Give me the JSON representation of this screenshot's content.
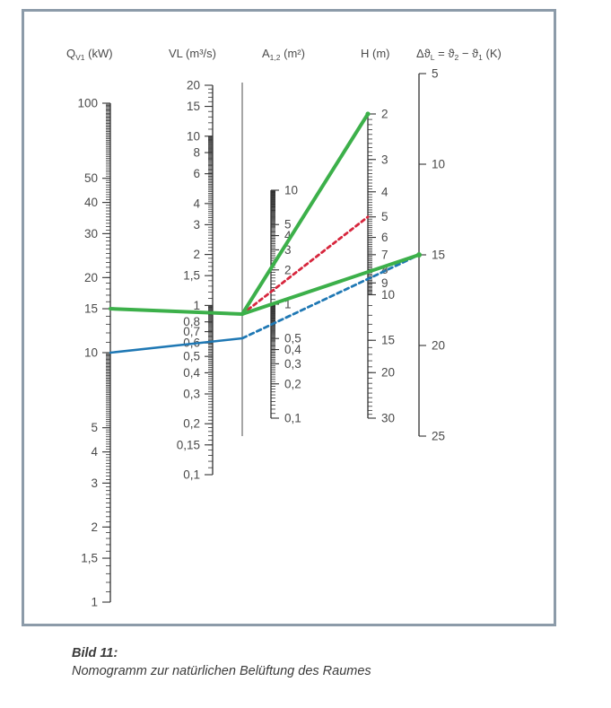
{
  "figure": {
    "headers": {
      "qv": "Q",
      "qv_sub": "V1",
      "qv_unit": " (kW)",
      "vl": "VL (m³/s)",
      "a": "A",
      "a_sub": "1,2",
      "a_unit": " (m²)",
      "h": "H (m)",
      "dt": "Δϑ",
      "dt_sub": "L",
      "dt_eq": " = ϑ",
      "dt_s2": "2",
      "dt_minus": " − ϑ",
      "dt_s1": "1",
      "dt_unit": " (K)"
    },
    "scales": {
      "qv": [
        "100",
        "50",
        "40",
        "30",
        "20",
        "15",
        "10",
        "5",
        "4",
        "3",
        "2",
        "1,5",
        "1"
      ],
      "vl": [
        "20",
        "15",
        "10",
        "8",
        "6",
        "4",
        "3",
        "2",
        "1,5",
        "1",
        "0,8",
        "0,7",
        "0,6",
        "0,5",
        "0,4",
        "0,3",
        "0,2",
        "0,15",
        "0,1"
      ],
      "a": [
        "10",
        "5",
        "4",
        "3",
        "2",
        "1",
        "0,5",
        "0,4",
        "0,3",
        "0,2",
        "0,1"
      ],
      "h": [
        "2",
        "3",
        "4",
        "5",
        "6",
        "7",
        "8",
        "9",
        "10",
        "15",
        "20",
        "30"
      ],
      "dt": [
        "5",
        "10",
        "15",
        "20",
        "25"
      ]
    },
    "lines": {
      "green": "#3cb04a",
      "blue": "#1f78b4",
      "red": "#d7263d"
    }
  },
  "caption": {
    "title": "Bild 11:",
    "text": "Nomogramm zur natürlichen Belüftung des Raumes"
  }
}
